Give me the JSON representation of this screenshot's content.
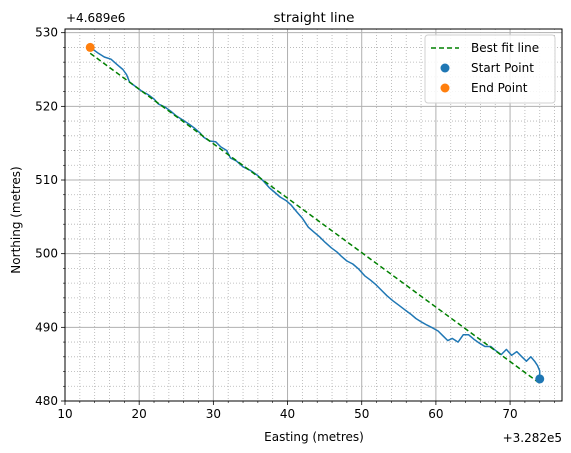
{
  "chart_data": {
    "type": "line",
    "title": "straight line",
    "xlabel": "Easting (metres)",
    "ylabel": "Northing (metres)",
    "x_offset_label": "+3.282e5",
    "y_offset_label": "+4.689e6",
    "xlim": [
      10,
      77
    ],
    "ylim": [
      480,
      530.5
    ],
    "xticks": [
      10,
      20,
      30,
      40,
      50,
      60,
      70
    ],
    "yticks": [
      480,
      490,
      500,
      510,
      520,
      530
    ],
    "grid": "major solid, minor dotted",
    "legend_position": "top-right",
    "colors": {
      "track": "#1f77b4",
      "fit": "#008000",
      "start": "#1f77b4",
      "end": "#ff7f0e"
    },
    "series": [
      {
        "name": "",
        "kind": "line",
        "x": [
          13.4,
          14.5,
          15.3,
          16.2,
          17.0,
          17.8,
          18.3,
          18.7,
          19.5,
          20.3,
          21.2,
          22.0,
          22.6,
          23.5,
          24.3,
          25.0,
          25.8,
          26.7,
          27.5,
          28.2,
          28.7,
          29.5,
          30.3,
          31.0,
          31.8,
          32.3,
          33.1,
          34.0,
          35.0,
          36.0,
          36.8,
          37.5,
          38.3,
          39.0,
          39.8,
          40.5,
          41.3,
          42.0,
          42.8,
          43.6,
          44.3,
          45.1,
          45.9,
          46.7,
          47.3,
          48.0,
          48.8,
          49.6,
          50.4,
          51.2,
          51.9,
          52.7,
          53.4,
          54.2,
          55.0,
          55.8,
          56.6,
          57.3,
          58.1,
          58.8,
          59.6,
          60.3,
          61.0,
          61.6,
          62.2,
          63.0,
          63.7,
          64.4,
          65.1,
          65.8,
          66.6,
          67.4,
          68.0,
          68.8,
          69.5,
          70.2,
          70.9,
          71.6,
          72.2,
          72.8,
          73.3,
          73.7,
          74.0,
          74.0
        ],
        "y": [
          528.0,
          527.2,
          526.7,
          526.4,
          525.7,
          525.0,
          524.3,
          523.3,
          522.7,
          522.1,
          521.6,
          521.0,
          520.3,
          519.9,
          519.3,
          518.7,
          518.2,
          517.6,
          517.0,
          516.4,
          515.8,
          515.3,
          515.2,
          514.5,
          514.0,
          513.0,
          512.6,
          511.8,
          511.3,
          510.6,
          509.8,
          509.0,
          508.3,
          507.7,
          507.2,
          506.6,
          505.6,
          504.8,
          503.6,
          502.9,
          502.3,
          501.5,
          500.8,
          500.2,
          499.6,
          499.0,
          498.6,
          497.9,
          497.0,
          496.4,
          495.8,
          495.0,
          494.3,
          493.6,
          493.0,
          492.4,
          491.8,
          491.2,
          490.7,
          490.3,
          489.9,
          489.5,
          488.8,
          488.2,
          488.5,
          488.0,
          489.0,
          489.0,
          488.4,
          487.9,
          487.4,
          487.4,
          486.9,
          486.3,
          487.0,
          486.2,
          486.7,
          486.0,
          485.4,
          486.0,
          485.4,
          484.8,
          484.1,
          483.1
        ]
      },
      {
        "name": "Best fit line",
        "kind": "dashed-line",
        "x": [
          13.4,
          74.0
        ],
        "y": [
          527.2,
          482.4
        ]
      },
      {
        "name": "Start Point",
        "kind": "marker",
        "x": [
          74.0
        ],
        "y": [
          483.0
        ]
      },
      {
        "name": "End Point",
        "kind": "marker",
        "x": [
          13.4
        ],
        "y": [
          528.0
        ]
      }
    ]
  }
}
